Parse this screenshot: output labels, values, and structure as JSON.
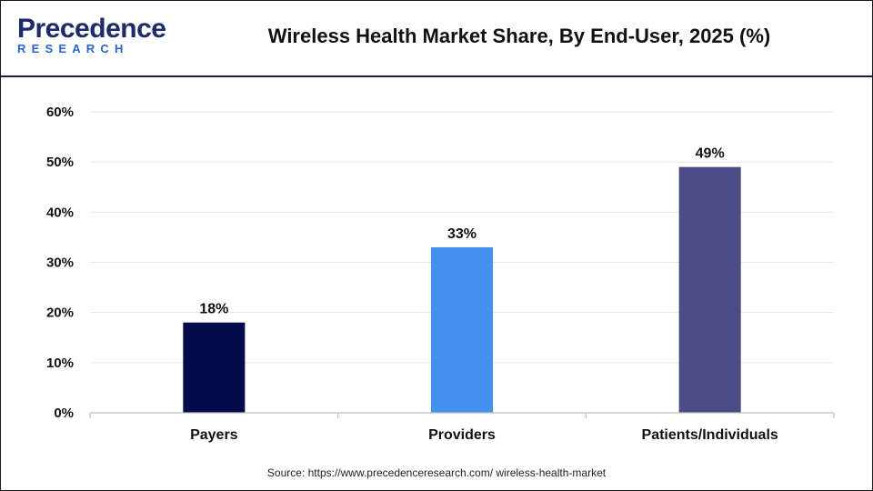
{
  "header": {
    "logo_main": "Precedence",
    "logo_sub": "RESEARCH",
    "title": "Wireless Health Market Share, By End-User, 2025 (%)"
  },
  "footer": {
    "source": "Source: https://www.precedenceresearch.com/ wireless-health-market"
  },
  "colors": {
    "header_rule": "#1a1f4b",
    "logo_dark": "#1d2a6b",
    "logo_accent": "#2a66c9"
  },
  "chart_data": {
    "type": "bar",
    "categories": [
      "Payers",
      "Providers",
      "Patients/Individuals"
    ],
    "values": [
      18,
      33,
      49
    ],
    "data_labels": [
      "18%",
      "33%",
      "49%"
    ],
    "bar_colors": [
      "#050a4a",
      "#4592ee",
      "#4b4b85"
    ],
    "ylim": [
      0,
      60
    ],
    "yticks": [
      0,
      10,
      20,
      30,
      40,
      50,
      60
    ],
    "ytick_labels": [
      "0%",
      "10%",
      "20%",
      "30%",
      "40%",
      "50%",
      "60%"
    ],
    "grid": true
  }
}
